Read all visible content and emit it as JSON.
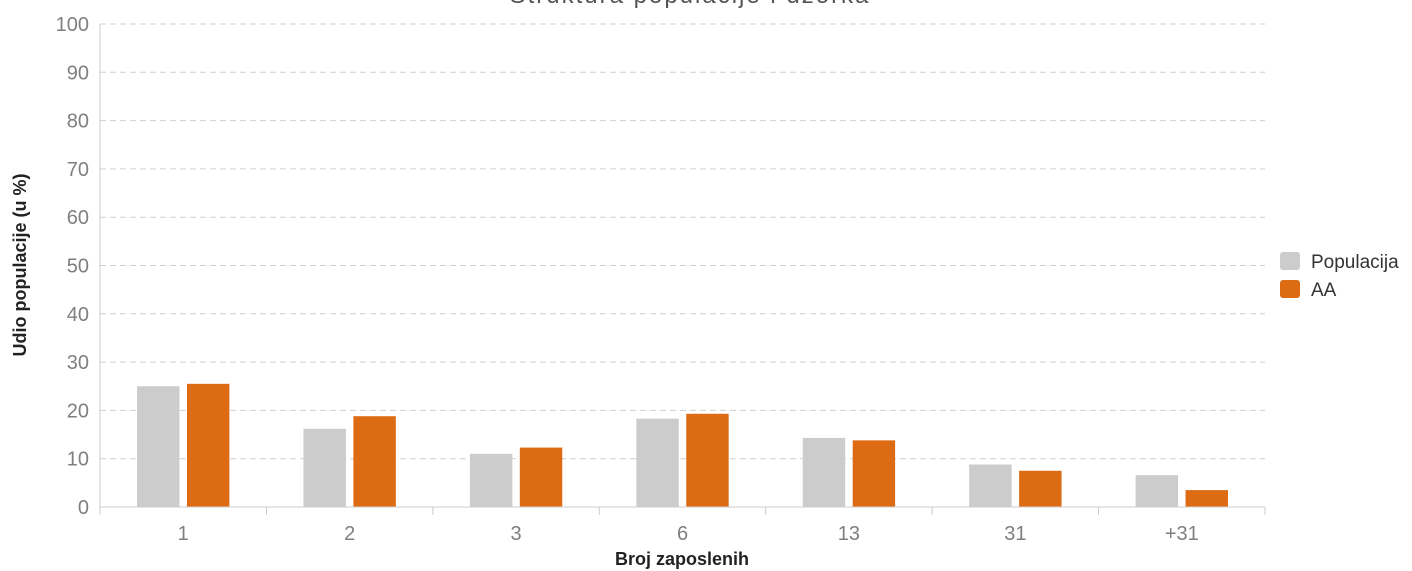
{
  "chart_data": {
    "type": "bar",
    "title": "Struktura populacije i uzorka",
    "xlabel": "Broj zaposlenih",
    "ylabel": "Udio populacije (u %)",
    "categories": [
      "1",
      "2",
      "3",
      "6",
      "13",
      "31",
      "+31"
    ],
    "ylim": [
      0,
      100
    ],
    "yticks": [
      "0",
      "10",
      "20",
      "30",
      "40",
      "50",
      "60",
      "70",
      "80",
      "90",
      "100"
    ],
    "grid": true,
    "legend_position": "right",
    "series": [
      {
        "name": "Populacija",
        "color": "#cccccc",
        "values": [
          25.0,
          16.2,
          11.0,
          18.3,
          14.3,
          8.8,
          6.6
        ]
      },
      {
        "name": "AA",
        "color": "#dd6b13",
        "values": [
          25.5,
          18.8,
          12.3,
          19.3,
          13.8,
          7.5,
          3.5
        ]
      }
    ]
  }
}
